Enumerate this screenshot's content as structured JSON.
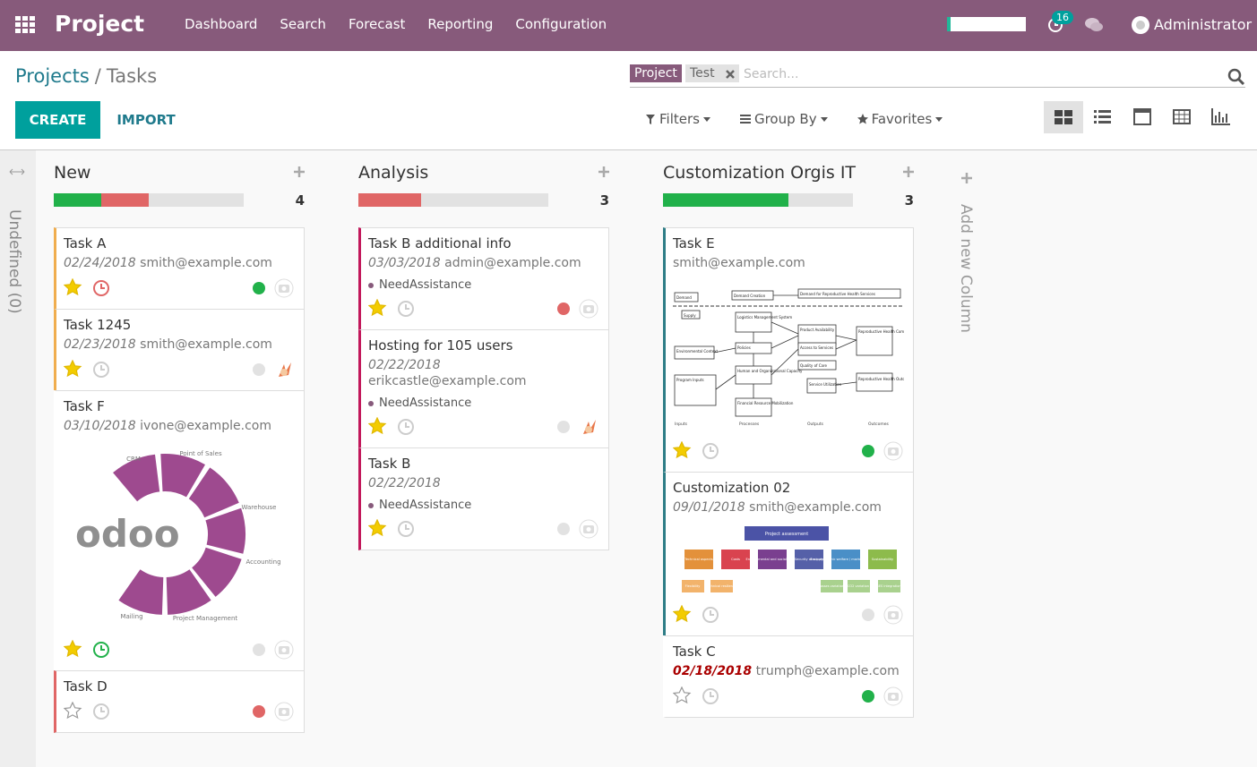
{
  "navbar": {
    "app": "Project",
    "menu": [
      "Dashboard",
      "Search",
      "Forecast",
      "Reporting",
      "Configuration"
    ],
    "notifications": 16,
    "user": "Administrator"
  },
  "breadcrumb": {
    "parent": "Projects",
    "separator": "/",
    "current": "Tasks"
  },
  "search": {
    "facet_label": "Project",
    "facet_value": "Test",
    "placeholder": "Search..."
  },
  "buttons": {
    "create": "CREATE",
    "import": "IMPORT"
  },
  "filters": [
    "Filters",
    "Group By",
    "Favorites"
  ],
  "folded_column": "Undefined (0)",
  "add_column": "Add new Column",
  "columns": [
    {
      "title": "New",
      "count": 4,
      "cards": [
        {
          "title": "Task A",
          "date": "02/24/2018",
          "email": "smith@example.com",
          "starred": true,
          "clock": "red",
          "state": "done",
          "avatar": "none",
          "color": "#f0ad4e"
        },
        {
          "title": "Task 1245",
          "date": "02/23/2018",
          "email": "smith@example.com",
          "starred": true,
          "clock": "grey",
          "state": "normal",
          "avatar": "user",
          "color": "#f0ad4e"
        },
        {
          "title": "Task F",
          "date": "03/10/2018",
          "email": "ivone@example.com",
          "starred": true,
          "clock": "green",
          "state": "normal",
          "avatar": "none",
          "image": {
            "kind": "odoo",
            "logo": "odoo",
            "labels": [
              "CRM",
              "Point of Sales",
              "Warehouse",
              "Accounting",
              "Project Management",
              "Mailing"
            ]
          }
        },
        {
          "title": "Task D",
          "starred": false,
          "clock": "grey",
          "state": "blocked",
          "avatar": "none",
          "color": "#e06666"
        }
      ]
    },
    {
      "title": "Analysis",
      "count": 3,
      "cards": [
        {
          "title": "Task B additional info",
          "date": "03/03/2018",
          "email": "admin@example.com",
          "tag": "NeedAssistance",
          "starred": true,
          "clock": "grey",
          "state": "blocked",
          "avatar": "none",
          "color": "#c2185b"
        },
        {
          "title": "Hosting for 105 users",
          "date": "02/22/2018",
          "email": "erikcastle@example.com",
          "tag": "NeedAssistance",
          "starred": true,
          "clock": "grey",
          "state": "normal",
          "avatar": "user",
          "color": "#c2185b"
        },
        {
          "title": "Task B",
          "date": "02/22/2018",
          "tag": "NeedAssistance",
          "starred": true,
          "clock": "grey",
          "state": "normal",
          "avatar": "none",
          "color": "#c2185b"
        }
      ]
    },
    {
      "title": "Customization Orgis IT",
      "count": 3,
      "cards": [
        {
          "title": "Task E",
          "email": "smith@example.com",
          "starred": true,
          "clock": "grey",
          "state": "done",
          "avatar": "none",
          "color": "#2e7d86",
          "image": {
            "kind": "flow",
            "labels": [
              "Demand",
              "Demand Creation",
              "Demand for Reproductive Health Services",
              "Supply",
              "Logistics Management System",
              "Product Availability",
              "Access to Services",
              "Quality of Care",
              "Reproductive Health Commodity Security",
              "Environmental Context",
              "Policies",
              "Human and Organizational Capacity",
              "Program Inputs",
              "Service Utilization",
              "Reproductive Health Outcomes",
              "Financial Resource Mobilization",
              "Inputs",
              "Processes",
              "Outputs",
              "Outcomes"
            ]
          }
        },
        {
          "title": "Customization 02",
          "date": "09/01/2018",
          "email": "smith@example.com",
          "starred": true,
          "clock": "grey",
          "state": "normal",
          "avatar": "none",
          "color": "#2e7d86",
          "image": {
            "kind": "tree",
            "labels": [
              "Project assessment",
              "Technical aspects",
              "Costs",
              "Environmental and social impact",
              "Security of supply",
              "Socio-economic welfare / market integration",
              "Sustainability",
              "Flexibility",
              "Technical resilience",
              "Losses variation",
              "CO2 variation",
              "RES integration"
            ]
          }
        },
        {
          "title": "Task C",
          "date": "02/18/2018",
          "overdue": true,
          "email": "trumph@example.com",
          "starred": false,
          "clock": "grey",
          "state": "done",
          "avatar": "none"
        }
      ]
    }
  ]
}
